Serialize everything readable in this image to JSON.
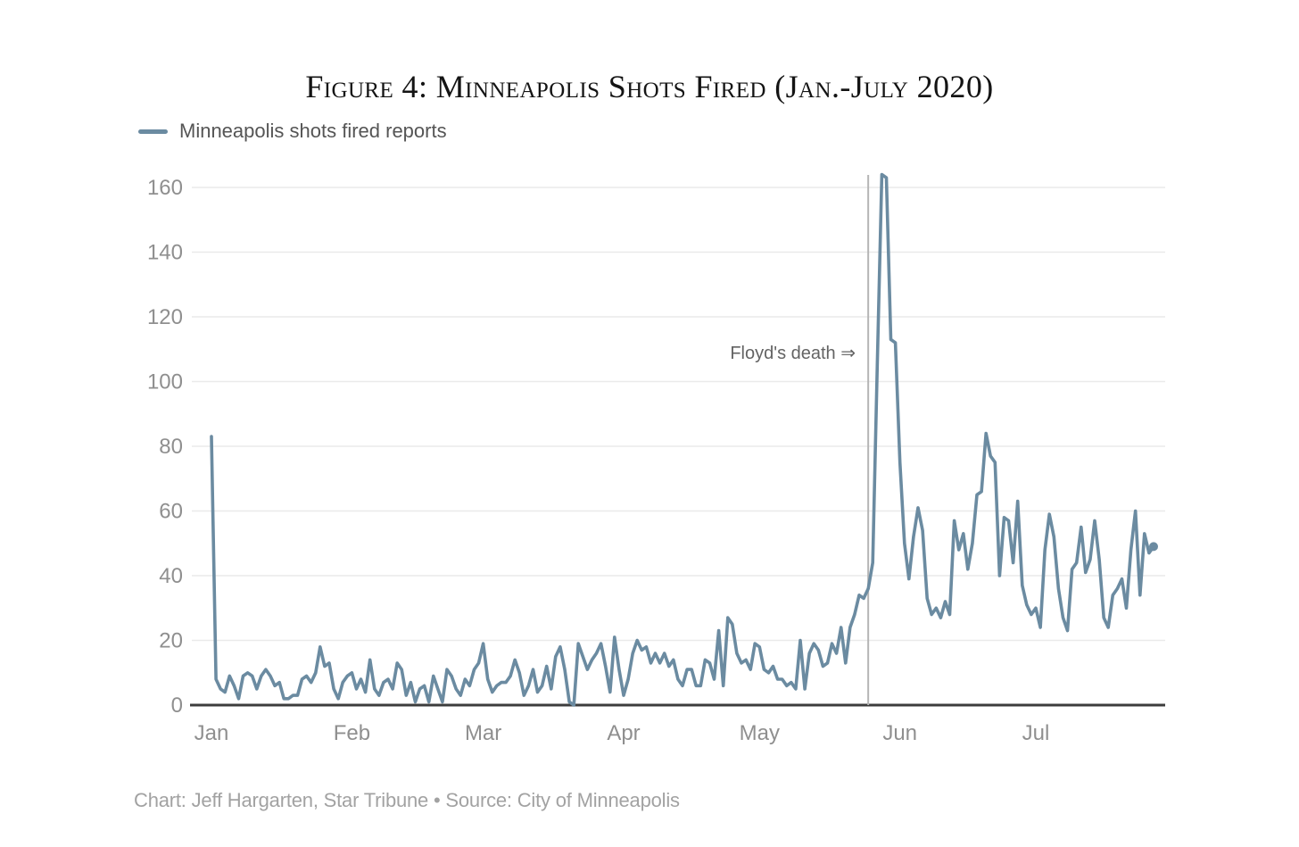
{
  "figure": {
    "title": "Figure 4: Minneapolis Shots Fired (Jan.-July 2020)",
    "legend": {
      "label": "Minneapolis shots fired reports",
      "color": "#6b8ba1"
    },
    "annotation": {
      "label": "Floyd's death ⇒"
    },
    "credit": "Chart: Jeff Hargarten, Star Tribune • Source: City of Minneapolis"
  },
  "chart_data": {
    "type": "line",
    "title": "Figure 4: Minneapolis Shots Fired (Jan.-July 2020)",
    "xlabel": "",
    "ylabel": "",
    "ylim": [
      0,
      164
    ],
    "yticks": [
      0,
      20,
      40,
      60,
      80,
      100,
      120,
      140,
      160
    ],
    "grid": "horizontal",
    "legend_position": "top-left",
    "x_ticks": [
      {
        "label": "Jan",
        "day_index": 0
      },
      {
        "label": "Feb",
        "day_index": 31
      },
      {
        "label": "Mar",
        "day_index": 60
      },
      {
        "label": "Apr",
        "day_index": 91
      },
      {
        "label": "May",
        "day_index": 121
      },
      {
        "label": "Jun",
        "day_index": 152
      },
      {
        "label": "Jul",
        "day_index": 182
      }
    ],
    "annotation": {
      "label": "Floyd's death ⇒",
      "day_index": 145
    },
    "series": [
      {
        "name": "Minneapolis shots fired reports",
        "color": "#6b8ba1",
        "start": "Jan 1 2020",
        "frequency": "daily",
        "values": [
          83,
          8,
          5,
          4,
          9,
          6,
          2,
          9,
          10,
          9,
          5,
          9,
          11,
          9,
          6,
          7,
          2,
          2,
          3,
          3,
          8,
          9,
          7,
          10,
          18,
          12,
          13,
          5,
          2,
          7,
          9,
          10,
          5,
          8,
          4,
          14,
          5,
          3,
          7,
          8,
          5,
          13,
          11,
          3,
          7,
          1,
          5,
          6,
          1,
          9,
          5,
          1,
          11,
          9,
          5,
          3,
          8,
          6,
          11,
          13,
          19,
          8,
          4,
          6,
          7,
          7,
          9,
          14,
          10,
          3,
          6,
          11,
          4,
          6,
          12,
          5,
          15,
          18,
          11,
          1,
          0,
          19,
          15,
          11,
          14,
          16,
          19,
          12,
          4,
          21,
          11,
          3,
          8,
          16,
          20,
          17,
          18,
          13,
          16,
          13,
          16,
          12,
          14,
          8,
          6,
          11,
          11,
          6,
          6,
          14,
          13,
          8,
          23,
          6,
          27,
          25,
          16,
          13,
          14,
          11,
          19,
          18,
          11,
          10,
          12,
          8,
          8,
          6,
          7,
          5,
          20,
          5,
          16,
          19,
          17,
          12,
          13,
          19,
          16,
          24,
          13,
          24,
          28,
          34,
          33,
          36,
          44,
          105,
          164,
          163,
          113,
          112,
          75,
          50,
          39,
          52,
          61,
          54,
          33,
          28,
          30,
          27,
          32,
          28,
          57,
          48,
          53,
          42,
          50,
          65,
          66,
          84,
          77,
          75,
          40,
          58,
          57,
          44,
          63,
          37,
          31,
          28,
          30,
          24,
          48,
          59,
          52,
          36,
          27,
          23,
          42,
          44,
          55,
          41,
          45,
          57,
          45,
          27,
          24,
          34,
          36,
          39,
          30,
          48,
          60,
          34,
          53,
          47,
          49
        ]
      }
    ]
  }
}
